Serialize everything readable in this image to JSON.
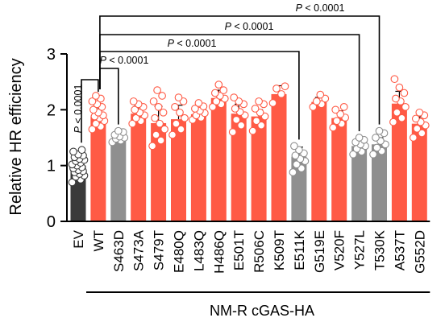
{
  "chart_data": {
    "type": "bar",
    "ylabel": "Relative HR efficiency",
    "ylim": [
      0,
      3
    ],
    "yticks": [
      0,
      1,
      2,
      3
    ],
    "group_label": "NM-R cGAS-HA",
    "categories": [
      "EV",
      "WT",
      "S463D",
      "S473A",
      "S479T",
      "E480Q",
      "L483Q",
      "H486Q",
      "E501T",
      "R506C",
      "K509T",
      "E511K",
      "G519E",
      "V520F",
      "Y527L",
      "T530K",
      "A537T",
      "G552D"
    ],
    "values": [
      1.0,
      1.88,
      1.49,
      1.93,
      1.76,
      1.83,
      1.92,
      2.21,
      1.93,
      1.88,
      2.28,
      1.16,
      2.14,
      1.85,
      1.35,
      1.38,
      2.11,
      1.75
    ],
    "errors": [
      0.14,
      0.18,
      0.05,
      0.15,
      0.3,
      0.25,
      0.1,
      0.14,
      0.17,
      0.12,
      0.15,
      0.17,
      0.08,
      0.13,
      0.1,
      0.12,
      0.22,
      0.12
    ],
    "bar_colors": [
      "#3a3a3a",
      "#ff5a45",
      "#8f8f8f",
      "#ff5a45",
      "#ff5a45",
      "#ff5a45",
      "#ff5a45",
      "#ff5a45",
      "#ff5a45",
      "#ff5a45",
      "#ff5a45",
      "#8f8f8f",
      "#ff5a45",
      "#ff5a45",
      "#8f8f8f",
      "#8f8f8f",
      "#ff5a45",
      "#ff5a45"
    ],
    "points": [
      [
        0.7,
        0.75,
        0.8,
        0.82,
        0.85,
        0.88,
        0.9,
        0.92,
        0.95,
        0.97,
        1.0,
        1.02,
        1.05,
        1.08,
        1.1,
        1.12,
        1.15,
        1.18,
        1.2,
        1.25,
        1.28
      ],
      [
        1.65,
        1.7,
        1.75,
        1.8,
        1.85,
        1.88,
        1.9,
        1.95,
        2.0,
        2.05,
        2.1,
        2.15,
        2.2,
        2.25
      ],
      [
        1.42,
        1.45,
        1.48,
        1.5,
        1.52,
        1.55,
        1.6,
        1.62
      ],
      [
        1.75,
        1.8,
        1.85,
        1.9,
        1.95,
        2.0,
        2.05,
        2.1,
        2.15
      ],
      [
        1.35,
        1.45,
        1.55,
        1.65,
        1.75,
        1.85,
        1.95,
        2.05,
        2.15,
        2.25,
        2.35
      ],
      [
        1.55,
        1.65,
        1.75,
        1.85,
        1.95,
        2.05,
        2.15,
        2.22
      ],
      [
        1.82,
        1.86,
        1.9,
        1.94,
        1.98,
        2.02,
        2.06,
        2.12
      ],
      [
        2.05,
        2.1,
        2.15,
        2.2,
        2.25,
        2.3,
        2.35,
        2.45
      ],
      [
        1.6,
        1.72,
        1.82,
        1.9,
        1.96,
        2.02,
        2.1,
        2.15,
        2.22
      ],
      [
        1.62,
        1.72,
        1.8,
        1.88,
        1.95,
        2.02,
        2.1,
        2.15
      ],
      [
        2.12,
        2.28,
        2.38,
        2.42
      ],
      [
        0.88,
        0.95,
        1.02,
        1.08,
        1.12,
        1.18,
        1.22,
        1.28,
        1.35
      ],
      [
        2.05,
        2.1,
        2.15,
        2.2,
        2.27
      ],
      [
        1.68,
        1.75,
        1.8,
        1.86,
        1.92,
        2.0,
        2.05
      ],
      [
        1.2,
        1.25,
        1.3,
        1.35,
        1.38,
        1.42,
        1.46,
        1.5
      ],
      [
        1.2,
        1.26,
        1.32,
        1.38,
        1.44,
        1.5,
        1.58,
        1.62
      ],
      [
        1.78,
        1.85,
        1.95,
        2.05,
        2.15,
        2.2,
        2.3,
        2.4,
        2.55
      ],
      [
        1.5,
        1.58,
        1.66,
        1.72,
        1.78,
        1.84,
        1.9,
        1.95
      ]
    ],
    "significance": [
      {
        "from": 1,
        "to": 2,
        "label": "P < 0.0001"
      },
      {
        "from": 1,
        "to": 11,
        "label": "P < 0.0001"
      },
      {
        "from": 1,
        "to": 14,
        "label": "P < 0.0001"
      },
      {
        "from": 1,
        "to": 15,
        "label": "P < 0.0001"
      },
      {
        "from": 0,
        "to": 1,
        "label": "P < 0.0001",
        "vertical": true
      }
    ]
  }
}
